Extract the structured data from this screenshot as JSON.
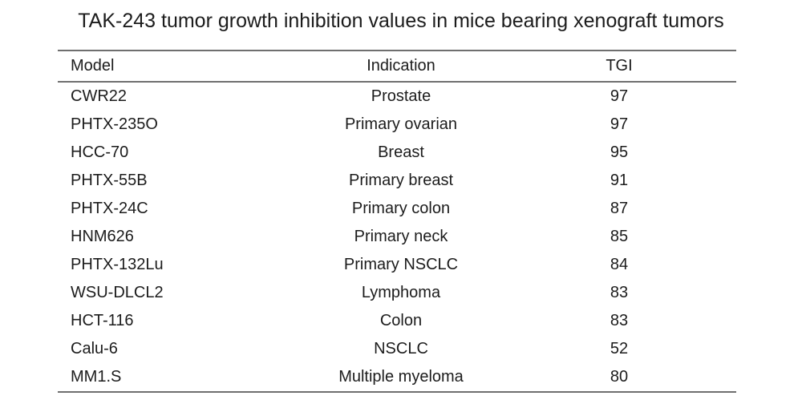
{
  "title": "TAK-243 tumor growth inhibition values in mice bearing xenograft tumors",
  "colors": {
    "text": "#1c1c1c",
    "rule": "#6f6f6f",
    "background": "#ffffff"
  },
  "table": {
    "columns": [
      "Model",
      "Indication",
      "TGI"
    ],
    "rows": [
      {
        "model": "CWR22",
        "indication": "Prostate",
        "tgi": "97"
      },
      {
        "model": "PHTX-235O",
        "indication": "Primary ovarian",
        "tgi": "97"
      },
      {
        "model": "HCC-70",
        "indication": "Breast",
        "tgi": "95"
      },
      {
        "model": "PHTX-55B",
        "indication": "Primary breast",
        "tgi": "91"
      },
      {
        "model": "PHTX-24C",
        "indication": "Primary colon",
        "tgi": "87"
      },
      {
        "model": "HNM626",
        "indication": "Primary neck",
        "tgi": "85"
      },
      {
        "model": "PHTX-132Lu",
        "indication": "Primary NSCLC",
        "tgi": "84"
      },
      {
        "model": "WSU-DLCL2",
        "indication": "Lymphoma",
        "tgi": "83"
      },
      {
        "model": "HCT-116",
        "indication": "Colon",
        "tgi": "83"
      },
      {
        "model": "Calu-6",
        "indication": "NSCLC",
        "tgi": "52"
      },
      {
        "model": "MM1.S",
        "indication": "Multiple myeloma",
        "tgi": "80"
      }
    ]
  },
  "chart_data": {
    "type": "table",
    "title": "TAK-243 tumor growth inhibition values in mice bearing xenograft tumors",
    "columns": [
      "Model",
      "Indication",
      "TGI"
    ],
    "categories": [
      "CWR22",
      "PHTX-235O",
      "HCC-70",
      "PHTX-55B",
      "PHTX-24C",
      "HNM626",
      "PHTX-132Lu",
      "WSU-DLCL2",
      "HCT-116",
      "Calu-6",
      "MM1.S"
    ],
    "indications": [
      "Prostate",
      "Primary ovarian",
      "Breast",
      "Primary breast",
      "Primary colon",
      "Primary neck",
      "Primary NSCLC",
      "Lymphoma",
      "Colon",
      "NSCLC",
      "Multiple myeloma"
    ],
    "values": [
      97,
      97,
      95,
      91,
      87,
      85,
      84,
      83,
      83,
      52,
      80
    ]
  }
}
